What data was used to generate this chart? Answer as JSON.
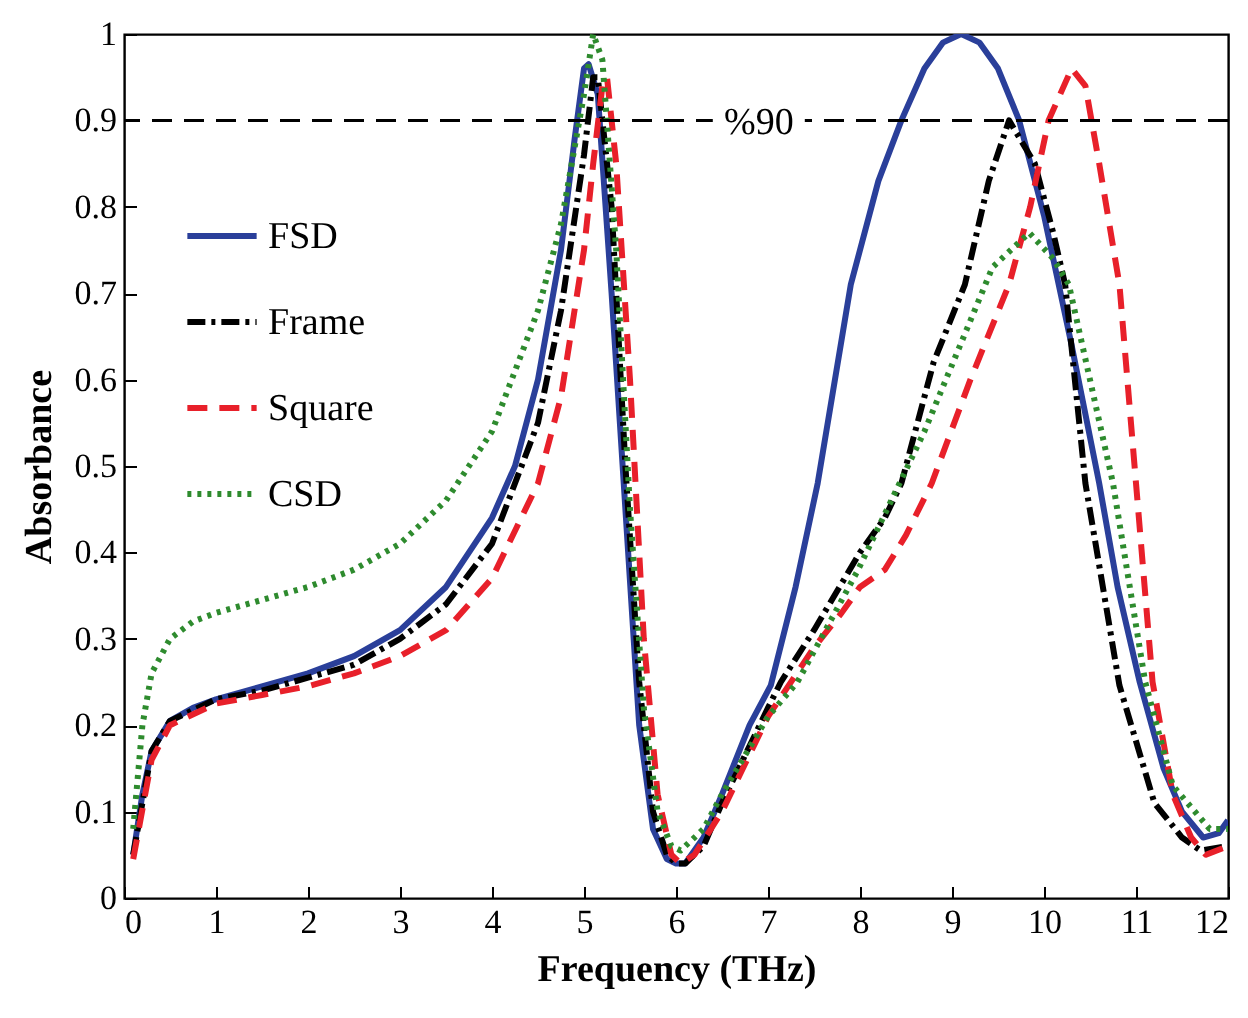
{
  "chart_data": {
    "type": "line",
    "xlabel": "Frequency (THz)",
    "ylabel": "Absorbance",
    "xlim": [
      0,
      12
    ],
    "xticks": [
      0,
      1,
      2,
      3,
      4,
      5,
      6,
      7,
      8,
      9,
      10,
      11,
      12
    ],
    "ylim": [
      0,
      1
    ],
    "yticks": [
      0,
      0.1,
      0.2,
      0.3,
      0.4,
      0.5,
      0.6,
      0.7,
      0.8,
      0.9,
      1
    ],
    "grid": false,
    "legend": "top left",
    "ref_lines": [
      {
        "axis": "y",
        "value": 0.9,
        "label": "%90",
        "color": "#000000",
        "line_style": "dashed"
      }
    ],
    "series": [
      {
        "name": "FSD",
        "color": "#2a3f9a",
        "line_style": "solid",
        "x": [
          0.1,
          0.2,
          0.3,
          0.5,
          0.75,
          1,
          1.5,
          2,
          2.5,
          3,
          3.5,
          4,
          4.25,
          4.5,
          4.75,
          4.9,
          5.0,
          5.05,
          5.15,
          5.3,
          5.45,
          5.6,
          5.75,
          5.9,
          6,
          6.1,
          6.3,
          6.5,
          6.8,
          7.03,
          7.3,
          7.54,
          7.9,
          8.2,
          8.45,
          8.7,
          8.9,
          9.1,
          9.3,
          9.5,
          9.73,
          10,
          10.3,
          10.6,
          10.8,
          11.04,
          11.3,
          11.5,
          11.73,
          11.9,
          12
        ],
        "values": [
          0.05,
          0.12,
          0.17,
          0.205,
          0.22,
          0.23,
          0.245,
          0.26,
          0.28,
          0.31,
          0.36,
          0.44,
          0.5,
          0.6,
          0.75,
          0.88,
          0.96,
          0.965,
          0.93,
          0.7,
          0.45,
          0.2,
          0.08,
          0.045,
          0.04,
          0.04,
          0.07,
          0.12,
          0.2,
          0.246,
          0.36,
          0.48,
          0.71,
          0.83,
          0.9,
          0.96,
          0.99,
          1.0,
          0.99,
          0.96,
          0.9,
          0.79,
          0.64,
          0.48,
          0.36,
          0.25,
          0.15,
          0.1,
          0.07,
          0.075,
          0.09
        ]
      },
      {
        "name": "Frame",
        "color": "#000000",
        "line_style": "dashdot",
        "x": [
          0.1,
          0.3,
          0.5,
          1,
          1.5,
          2,
          2.5,
          3,
          3.5,
          4,
          4.5,
          4.75,
          5.0,
          5.1,
          5.15,
          5.3,
          5.45,
          5.6,
          5.75,
          5.9,
          6,
          6.1,
          6.3,
          6.5,
          7,
          7.14,
          7.5,
          8,
          8.27,
          8.45,
          8.8,
          9.14,
          9.4,
          9.62,
          9.9,
          10.1,
          10.23,
          10.45,
          10.82,
          11.2,
          11.5,
          11.7,
          12
        ],
        "values": [
          0.05,
          0.17,
          0.205,
          0.23,
          0.24,
          0.255,
          0.27,
          0.3,
          0.34,
          0.41,
          0.55,
          0.68,
          0.86,
          0.95,
          0.95,
          0.8,
          0.5,
          0.25,
          0.1,
          0.05,
          0.04,
          0.04,
          0.06,
          0.11,
          0.22,
          0.25,
          0.31,
          0.4,
          0.44,
          0.48,
          0.62,
          0.71,
          0.83,
          0.9,
          0.85,
          0.77,
          0.71,
          0.48,
          0.246,
          0.11,
          0.07,
          0.055,
          0.06
        ]
      },
      {
        "name": "Square",
        "color": "#e8202a",
        "line_style": "dashed",
        "x": [
          0.1,
          0.3,
          0.5,
          1,
          1.5,
          2,
          2.5,
          3,
          3.5,
          4,
          4.5,
          4.75,
          5,
          5.1,
          5.2,
          5.25,
          5.35,
          5.5,
          5.65,
          5.8,
          5.95,
          6.05,
          6.2,
          6.5,
          7,
          7.5,
          7.8,
          8,
          8.27,
          8.5,
          8.78,
          9.2,
          9.62,
          9.85,
          10.05,
          10.3,
          10.45,
          10.6,
          10.82,
          11,
          11.18,
          11.4,
          11.6,
          11.76,
          12
        ],
        "values": [
          0.045,
          0.16,
          0.2,
          0.225,
          0.235,
          0.245,
          0.26,
          0.28,
          0.31,
          0.37,
          0.48,
          0.58,
          0.75,
          0.85,
          0.94,
          0.95,
          0.85,
          0.6,
          0.3,
          0.12,
          0.05,
          0.04,
          0.05,
          0.1,
          0.21,
          0.29,
          0.33,
          0.36,
          0.38,
          0.42,
          0.48,
          0.6,
          0.71,
          0.8,
          0.9,
          0.96,
          0.94,
          0.85,
          0.71,
          0.48,
          0.25,
          0.12,
          0.07,
          0.05,
          0.06
        ]
      },
      {
        "name": "CSD",
        "color": "#2e8b2e",
        "line_style": "dotted",
        "x": [
          0.1,
          0.2,
          0.3,
          0.5,
          0.75,
          1,
          1.5,
          2,
          2.5,
          3,
          3.5,
          4,
          4.5,
          4.75,
          5,
          5.1,
          5.2,
          5.35,
          5.5,
          5.65,
          5.8,
          5.95,
          6.05,
          6.3,
          6.5,
          7,
          7.32,
          7.98,
          8.7,
          9.44,
          9.84,
          10.1,
          10.27,
          10.75,
          11.1,
          11.4,
          11.8,
          12
        ],
        "values": [
          0.08,
          0.2,
          0.26,
          0.3,
          0.32,
          0.33,
          0.345,
          0.36,
          0.38,
          0.41,
          0.46,
          0.54,
          0.68,
          0.78,
          0.93,
          1.0,
          0.97,
          0.75,
          0.45,
          0.22,
          0.1,
          0.06,
          0.055,
          0.08,
          0.12,
          0.21,
          0.25,
          0.38,
          0.54,
          0.73,
          0.77,
          0.74,
          0.71,
          0.48,
          0.25,
          0.13,
          0.08,
          0.08
        ]
      }
    ]
  }
}
